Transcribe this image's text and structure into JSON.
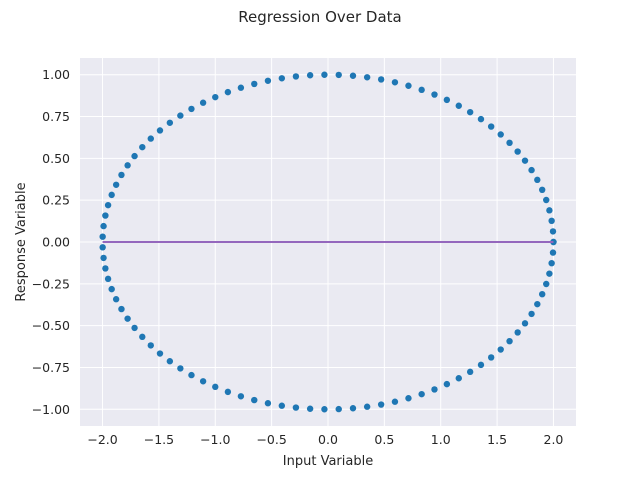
{
  "chart_data": {
    "type": "scatter",
    "title": "Regression Over Data",
    "xlabel": "Input Variable",
    "ylabel": "Response Variable",
    "xlim": [
      -2.2,
      2.2
    ],
    "ylim": [
      -1.1,
      1.1
    ],
    "xticks": [
      -2.0,
      -1.5,
      -1.0,
      -0.5,
      0.0,
      0.5,
      1.0,
      1.5,
      2.0
    ],
    "xtick_labels": [
      "−2.0",
      "−1.5",
      "−1.0",
      "−0.5",
      "0.0",
      "0.5",
      "1.0",
      "1.5",
      "2.0"
    ],
    "yticks": [
      -1.0,
      -0.75,
      -0.5,
      -0.25,
      0.0,
      0.25,
      0.5,
      0.75,
      1.0
    ],
    "ytick_labels": [
      "−1.00",
      "−0.75",
      "−0.50",
      "−0.25",
      "0.00",
      "0.25",
      "0.50",
      "0.75",
      "1.00"
    ],
    "grid": true,
    "background": "#eaeaf2",
    "series": [
      {
        "kind": "scatter",
        "color": "#1f77b4",
        "shape": "ellipse",
        "center": [
          0,
          0
        ],
        "x_radius": 2.0,
        "y_radius": 1.0,
        "n_points": 100
      },
      {
        "kind": "line",
        "color": "#9467bd",
        "x": [
          -2.0,
          2.0
        ],
        "y": [
          0.0,
          0.0
        ]
      }
    ]
  }
}
